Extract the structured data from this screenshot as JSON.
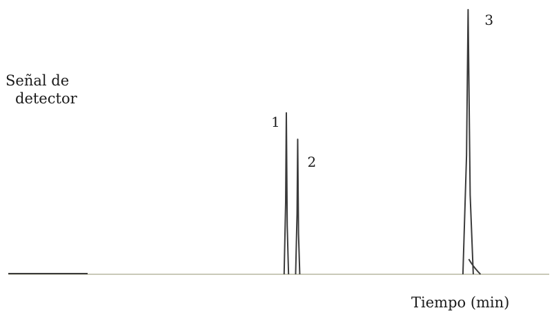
{
  "chart_data": {
    "type": "line",
    "title": "",
    "ylabel_lines": [
      "Señal de",
      "detector"
    ],
    "xlabel": "Tiempo (min)",
    "baseline": 0,
    "xlim": [
      0,
      100
    ],
    "ylim": [
      0,
      100
    ],
    "grid": false,
    "peaks": [
      {
        "label": "1",
        "x": 51.4,
        "height": 61
      },
      {
        "label": "2",
        "x": 53.5,
        "height": 51
      },
      {
        "label": "3",
        "x": 85.0,
        "height": 100
      }
    ],
    "colors": {
      "trace": "#3a3a3a",
      "baseline": "#c9c9b8",
      "text": "#1a1a1a"
    }
  }
}
